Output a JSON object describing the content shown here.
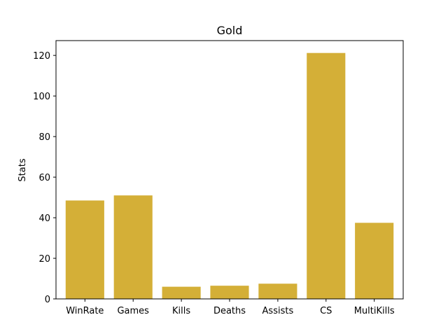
{
  "chart_data": {
    "type": "bar",
    "title": "Gold",
    "xlabel": "",
    "ylabel": "Stats",
    "categories": [
      "WinRate",
      "Games",
      "Kills",
      "Deaths",
      "Assists",
      "CS",
      "MultiKills"
    ],
    "values": [
      48.5,
      51,
      6,
      6.5,
      7.5,
      121.2,
      37.5
    ],
    "ylim": [
      0,
      127.3
    ],
    "yticks": [
      0,
      20,
      40,
      60,
      80,
      100,
      120
    ],
    "bar_color": "#d4af37",
    "grid": false,
    "legend": "none"
  }
}
